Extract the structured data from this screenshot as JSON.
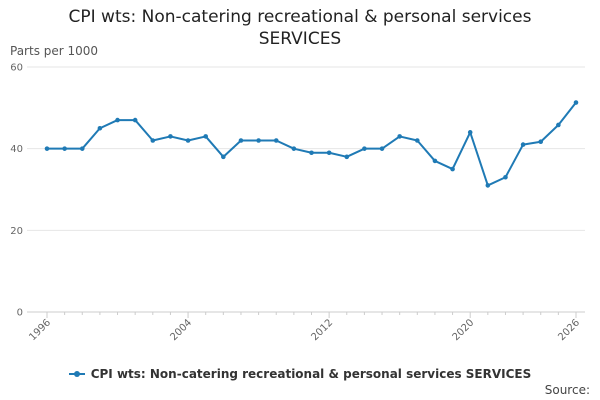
{
  "chart_data": {
    "type": "line",
    "title_lines": [
      "CPI wts: Non-catering recreational & personal services",
      "SERVICES"
    ],
    "ylabel": "Parts per 1000",
    "xlabel": "",
    "ylim": [
      0,
      60
    ],
    "yticks": [
      0,
      20,
      40,
      60
    ],
    "xlim": [
      1996,
      2026
    ],
    "xticks": [
      1996,
      2004,
      2012,
      2020,
      2026
    ],
    "grid": true,
    "legend_position": "bottom",
    "series": [
      {
        "name": "CPI wts: Non-catering recreational & personal services SERVICES",
        "color": "#1f7ab5",
        "x": [
          1996,
          1997,
          1998,
          1999,
          2000,
          2001,
          2002,
          2003,
          2004,
          2005,
          2006,
          2007,
          2008,
          2009,
          2010,
          2011,
          2012,
          2013,
          2014,
          2015,
          2016,
          2017,
          2018,
          2019,
          2020,
          2021,
          2022,
          2023,
          2024,
          2025,
          2026
        ],
        "values": [
          40,
          40,
          40,
          45,
          47,
          47,
          42,
          43,
          42,
          43,
          38,
          42,
          42,
          42,
          40,
          39,
          39,
          38,
          40,
          40,
          43,
          42,
          37,
          35,
          44,
          31,
          33,
          41,
          41.7,
          45.8,
          51.3
        ]
      }
    ]
  },
  "source_label": "Source:"
}
